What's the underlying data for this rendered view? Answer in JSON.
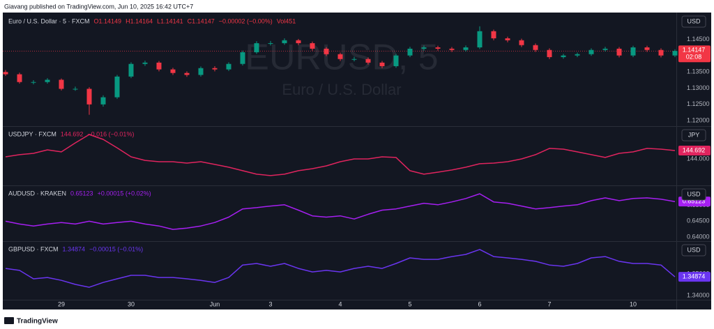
{
  "header": "Giavang published on TradingView.com, Jun 10, 2025 16:42 UTC+7",
  "footer": "TradingView",
  "chart_data": [
    {
      "type": "candlestick",
      "title": "Euro / U.S. Dollar · 5 · FXCM",
      "ohlc_legend": [
        "O1.14149",
        "H1.14164",
        "L1.14141",
        "C1.14147",
        "−0.00002 (−0.00%)",
        "Vol451"
      ],
      "watermark": [
        "EURUSD, 5",
        "Euro / U.S. Dollar"
      ],
      "currency": "USD",
      "last_price": 1.14147,
      "countdown": "02:08",
      "up_color": "#089981",
      "down_color": "#f23645",
      "ylim": [
        1.1185,
        1.1525
      ],
      "yticks": [
        {
          "value": 1.12,
          "label": "1.12000"
        },
        {
          "value": 1.125,
          "label": "1.12500"
        },
        {
          "value": 1.13,
          "label": "1.13000"
        },
        {
          "value": 1.135,
          "label": "1.13500"
        },
        {
          "value": 1.14,
          "label": "1.14000"
        },
        {
          "value": 1.145,
          "label": "1.14500"
        }
      ],
      "ohlc": [
        [
          1.135,
          1.1356,
          1.1338,
          1.1343
        ],
        [
          1.1343,
          1.1348,
          1.1314,
          1.1319
        ],
        [
          1.1319,
          1.1325,
          1.1312,
          1.1319
        ],
        [
          1.1319,
          1.1331,
          1.1314,
          1.1326
        ],
        [
          1.1326,
          1.133,
          1.1293,
          1.1298
        ],
        [
          1.1298,
          1.1305,
          1.1292,
          1.1298
        ],
        [
          1.1298,
          1.1303,
          1.1218,
          1.125
        ],
        [
          1.125,
          1.1278,
          1.1243,
          1.1272
        ],
        [
          1.1272,
          1.1341,
          1.1267,
          1.1336
        ],
        [
          1.1336,
          1.138,
          1.1331,
          1.1375
        ],
        [
          1.1375,
          1.1385,
          1.1369,
          1.1379
        ],
        [
          1.1379,
          1.1384,
          1.1352,
          1.1358
        ],
        [
          1.1358,
          1.1363,
          1.1341,
          1.1347
        ],
        [
          1.1347,
          1.1352,
          1.1335,
          1.1341
        ],
        [
          1.1341,
          1.1367,
          1.1336,
          1.1362
        ],
        [
          1.1362,
          1.1368,
          1.1352,
          1.1358
        ],
        [
          1.1358,
          1.138,
          1.1353,
          1.1375
        ],
        [
          1.1375,
          1.1416,
          1.137,
          1.1411
        ],
        [
          1.1411,
          1.1445,
          1.1406,
          1.1439
        ],
        [
          1.1439,
          1.1446,
          1.1432,
          1.1439
        ],
        [
          1.1439,
          1.1454,
          1.1434,
          1.1448
        ],
        [
          1.1448,
          1.1452,
          1.1433,
          1.1439
        ],
        [
          1.1439,
          1.1444,
          1.1416,
          1.1422
        ],
        [
          1.1422,
          1.1427,
          1.1399,
          1.1405
        ],
        [
          1.1405,
          1.141,
          1.1384,
          1.139
        ],
        [
          1.139,
          1.1397,
          1.1383,
          1.139
        ],
        [
          1.139,
          1.1395,
          1.1373,
          1.1379
        ],
        [
          1.1379,
          1.1384,
          1.1362,
          1.1368
        ],
        [
          1.1368,
          1.1406,
          1.1363,
          1.1401
        ],
        [
          1.1401,
          1.1428,
          1.1396,
          1.1422
        ],
        [
          1.1422,
          1.1432,
          1.1416,
          1.1426
        ],
        [
          1.1426,
          1.1431,
          1.1416,
          1.1422
        ],
        [
          1.1422,
          1.1427,
          1.1412,
          1.1418
        ],
        [
          1.1418,
          1.1432,
          1.1413,
          1.1426
        ],
        [
          1.1426,
          1.1491,
          1.1421,
          1.1476
        ],
        [
          1.1476,
          1.1481,
          1.1448,
          1.1454
        ],
        [
          1.1454,
          1.1459,
          1.1442,
          1.1448
        ],
        [
          1.1448,
          1.1453,
          1.1427,
          1.1433
        ],
        [
          1.1433,
          1.1438,
          1.1412,
          1.1418
        ],
        [
          1.1418,
          1.1423,
          1.139,
          1.1396
        ],
        [
          1.1396,
          1.1406,
          1.1391,
          1.1401
        ],
        [
          1.1401,
          1.141,
          1.1396,
          1.1405
        ],
        [
          1.1405,
          1.1423,
          1.14,
          1.1418
        ],
        [
          1.1418,
          1.1428,
          1.1413,
          1.1422
        ],
        [
          1.1422,
          1.1427,
          1.1395,
          1.1401
        ],
        [
          1.1401,
          1.1431,
          1.1396,
          1.1426
        ],
        [
          1.1426,
          1.1431,
          1.1412,
          1.1418
        ],
        [
          1.1418,
          1.1423,
          1.1395,
          1.1401
        ],
        [
          1.1401,
          1.142,
          1.1396,
          1.1415
        ]
      ]
    },
    {
      "type": "line",
      "title": "USDJPY · FXCM",
      "price": "144.692",
      "change": "−0.016 (−0.01%)",
      "currency": "JPY",
      "last_price": 144.692,
      "color": "#e0245e",
      "ylim": [
        141.86,
        146.6
      ],
      "yticks": [
        {
          "value": 144,
          "label": "144.000"
        }
      ],
      "values": [
        144.17,
        144.35,
        144.46,
        144.75,
        144.58,
        145.33,
        146.02,
        145.62,
        144.92,
        144.17,
        143.88,
        143.77,
        143.77,
        143.65,
        143.77,
        143.54,
        143.31,
        143.02,
        142.73,
        142.62,
        142.73,
        143.02,
        143.19,
        143.42,
        143.77,
        144,
        144,
        144.17,
        144.12,
        143.02,
        142.73,
        142.9,
        143.08,
        143.31,
        143.6,
        143.65,
        143.77,
        144,
        144.35,
        144.87,
        144.81,
        144.58,
        144.35,
        144.12,
        144.46,
        144.58,
        144.87,
        144.81,
        144.69
      ]
    },
    {
      "type": "line",
      "title": "AUDUSD · KRAKEN",
      "price": "0.65123",
      "change": "+0.00015 (+0.02%)",
      "currency": "USD",
      "last_price": 0.65123,
      "color": "#a61ff2",
      "ylim": [
        0.6389,
        0.6559
      ],
      "yticks": [
        {
          "value": 0.64,
          "label": "0.64000"
        },
        {
          "value": 0.645,
          "label": "0.64500"
        },
        {
          "value": 0.65,
          "label": "0.65000"
        }
      ],
      "values": [
        0.645,
        0.6441,
        0.6435,
        0.6441,
        0.6446,
        0.6441,
        0.645,
        0.6441,
        0.6446,
        0.645,
        0.6441,
        0.6435,
        0.6424,
        0.6428,
        0.6435,
        0.6446,
        0.6463,
        0.6489,
        0.6493,
        0.6498,
        0.6502,
        0.6485,
        0.6467,
        0.6463,
        0.6467,
        0.6457,
        0.6472,
        0.6485,
        0.6489,
        0.6498,
        0.6507,
        0.6502,
        0.6511,
        0.6522,
        0.6537,
        0.6511,
        0.6507,
        0.6498,
        0.6489,
        0.6493,
        0.6498,
        0.6502,
        0.6515,
        0.6524,
        0.6515,
        0.6522,
        0.6524,
        0.652,
        0.6512
      ]
    },
    {
      "type": "line",
      "title": "GBPUSD · FXCM",
      "price": "1.34874",
      "change": "−0.00015 (−0.01%)",
      "currency": "USD",
      "last_price": 1.34874,
      "color": "#6a35f0",
      "ylim": [
        1.3381,
        1.3646
      ],
      "yticks": [
        {
          "value": 1.34,
          "label": "1.34000"
        },
        {
          "value": 1.35,
          "label": "1.35000"
        }
      ],
      "categories": [
        null,
        null,
        null,
        null,
        "29",
        null,
        null,
        null,
        null,
        "30",
        null,
        null,
        null,
        null,
        null,
        "Jun",
        null,
        null,
        null,
        "3",
        null,
        null,
        null,
        null,
        "4",
        null,
        null,
        null,
        null,
        "5",
        null,
        null,
        null,
        null,
        "6",
        null,
        null,
        null,
        null,
        "7",
        null,
        null,
        null,
        null,
        null,
        "10",
        null,
        null,
        null
      ],
      "values": [
        1.3526,
        1.3517,
        1.3478,
        1.3484,
        1.3471,
        1.3452,
        1.3439,
        1.3461,
        1.3478,
        1.3494,
        1.3494,
        1.3484,
        1.3484,
        1.3478,
        1.3471,
        1.3461,
        1.3484,
        1.3542,
        1.3549,
        1.3536,
        1.3549,
        1.3526,
        1.351,
        1.3517,
        1.351,
        1.3526,
        1.3536,
        1.3526,
        1.3549,
        1.3575,
        1.3568,
        1.3568,
        1.3581,
        1.3591,
        1.3614,
        1.3581,
        1.3575,
        1.3568,
        1.3559,
        1.3542,
        1.3536,
        1.3549,
        1.3575,
        1.3581,
        1.3559,
        1.3549,
        1.3549,
        1.3542,
        1.3487
      ]
    }
  ]
}
